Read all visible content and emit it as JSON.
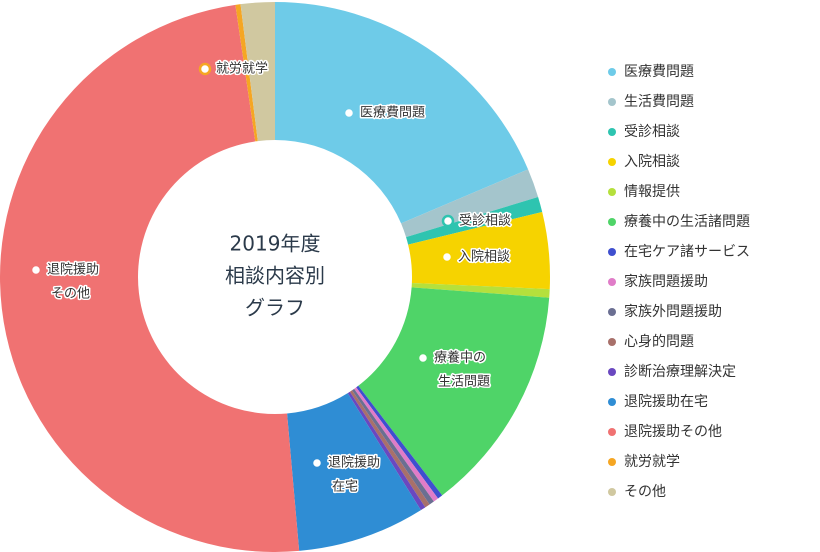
{
  "chart_data": {
    "type": "donut",
    "title": [
      "2019年度",
      "相談内容別",
      "グラフ"
    ],
    "categories": [
      "医療費問題",
      "生活費問題",
      "受診相談",
      "入院相談",
      "情報提供",
      "療養中の生活諸問題",
      "在宅ケア諸サービス",
      "家族問題援助",
      "家族外問題援助",
      "心身的問題",
      "診断治療理解決定",
      "退院援助在宅",
      "退院援助その他",
      "就労就学",
      "その他"
    ],
    "values": [
      18.6,
      1.7,
      0.9,
      4.5,
      0.5,
      13.4,
      0.3,
      0.3,
      0.3,
      0.3,
      0.3,
      7.5,
      49.1,
      0.3,
      2
    ],
    "colors": [
      "#6ecbe8",
      "#a4c5cc",
      "#2ec4b0",
      "#f6d300",
      "#b5e03c",
      "#4fd468",
      "#3f4fcf",
      "#e07cc8",
      "#6b6f92",
      "#a8706a",
      "#6a48c0",
      "#2f8dd4",
      "#f07272",
      "#f5a623",
      "#d0c8a0"
    ],
    "slice_labels": [
      [
        "医療費問題"
      ],
      null,
      [
        "受診相談"
      ],
      [
        "入院相談"
      ],
      null,
      [
        "療養中の",
        "生活問題"
      ],
      null,
      null,
      null,
      null,
      null,
      [
        "退院援助",
        "在宅"
      ],
      [
        "退院援助",
        "その他"
      ],
      [
        "就労就学"
      ],
      null
    ],
    "legend": "right"
  }
}
